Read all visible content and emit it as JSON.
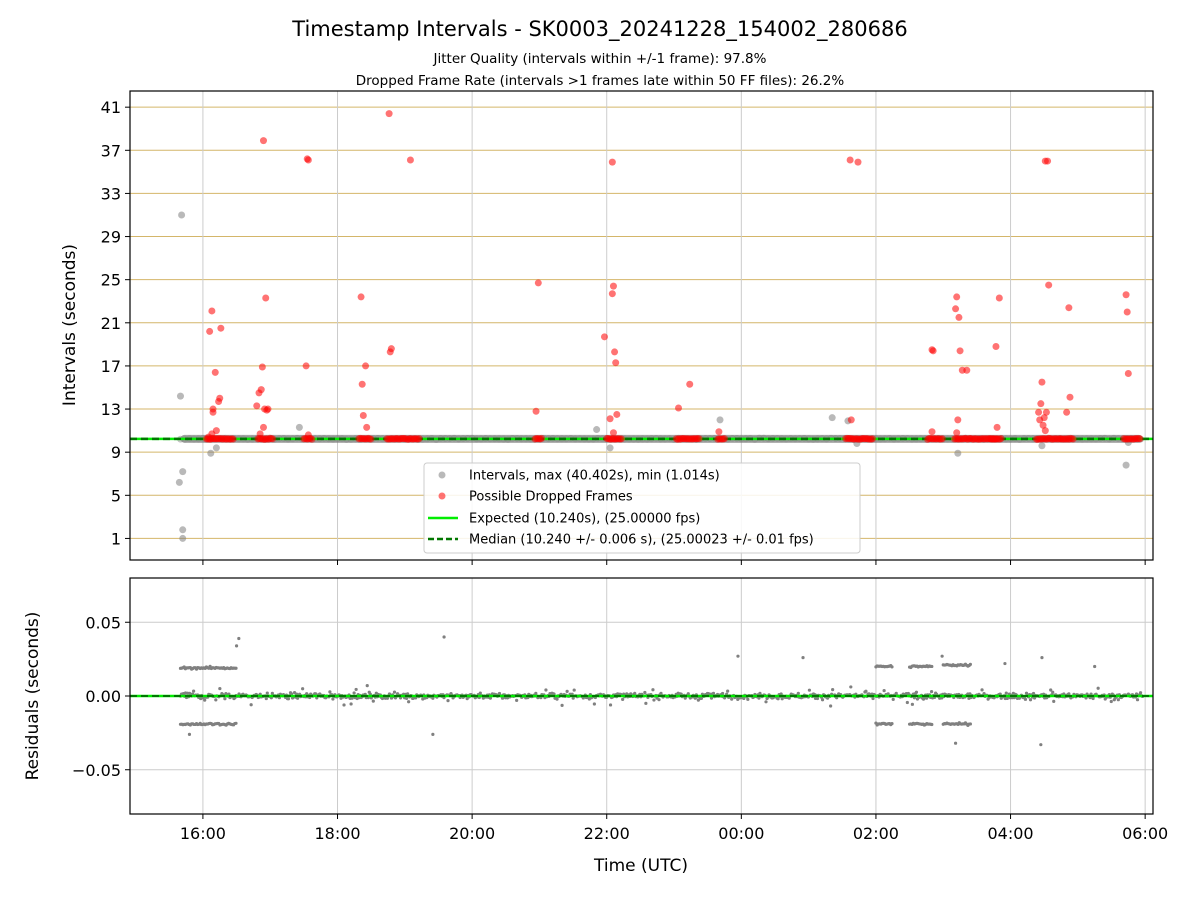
{
  "title": "Timestamp Intervals - SK0003_20241228_154002_280686",
  "subtitle_lines": [
    "Jitter Quality (intervals within +/-1 frame): 97.8%",
    "Dropped Frame Rate (intervals >1 frames late within 50 FF files): 26.2%"
  ],
  "colors": {
    "intervals": "#808080",
    "dropped": "#ff0000",
    "expected": "#00ee00",
    "median": "#007700",
    "hgrid_top": "#d4b66a",
    "grid": "#cccccc"
  },
  "chart_data": [
    {
      "type": "scatter",
      "ylabel": "Intervals (seconds)",
      "yticks": [
        1,
        5,
        9,
        13,
        17,
        21,
        25,
        29,
        33,
        37,
        41
      ],
      "ylim": [
        -1,
        42.5
      ],
      "grid": true,
      "legend_position": "lower center",
      "legend": [
        "Intervals, max (40.402s), min (1.014s)",
        "Possible Dropped Frames",
        "Expected (10.240s), (25.00000 fps)",
        "Median (10.240 +/- 0.006 s), (25.00023 +/- 0.01 fps)"
      ],
      "expected_value": 10.24,
      "median_value": 10.24,
      "interval_outliers": [
        [
          "15:41",
          31.0
        ],
        [
          "15:40",
          14.2
        ],
        [
          "15:42",
          7.2
        ],
        [
          "15:39",
          6.2
        ],
        [
          "15:42",
          1.8
        ],
        [
          "15:42",
          1.0
        ],
        [
          "16:07",
          8.9
        ],
        [
          "16:12",
          9.4
        ],
        [
          "17:26",
          11.3
        ],
        [
          "21:51",
          11.1
        ],
        [
          "22:03",
          9.4
        ],
        [
          "23:41",
          12.0
        ],
        [
          "01:21",
          12.2
        ],
        [
          "01:35",
          11.9
        ],
        [
          "01:43",
          9.8
        ],
        [
          "03:13",
          8.9
        ],
        [
          "04:28",
          9.6
        ],
        [
          "05:43",
          7.8
        ],
        [
          "05:45",
          9.9
        ]
      ],
      "dropped_frames": [
        [
          "16:06",
          20.2
        ],
        [
          "16:08",
          22.1
        ],
        [
          "16:09",
          13.0
        ],
        [
          "16:09",
          12.7
        ],
        [
          "16:11",
          16.4
        ],
        [
          "16:14",
          13.7
        ],
        [
          "16:15",
          14.0
        ],
        [
          "16:16",
          20.5
        ],
        [
          "16:05",
          10.4
        ],
        [
          "16:08",
          10.7
        ],
        [
          "16:12",
          11.0
        ],
        [
          "16:48",
          13.3
        ],
        [
          "16:50",
          14.5
        ],
        [
          "16:52",
          14.8
        ],
        [
          "16:53",
          16.9
        ],
        [
          "16:54",
          11.3
        ],
        [
          "16:55",
          13.0
        ],
        [
          "16:56",
          23.3
        ],
        [
          "16:57",
          12.9
        ],
        [
          "16:58",
          13.0
        ],
        [
          "16:54",
          37.9
        ],
        [
          "16:51",
          10.7
        ],
        [
          "17:33",
          36.2
        ],
        [
          "17:34",
          36.1
        ],
        [
          "17:32",
          17.0
        ],
        [
          "17:34",
          10.6
        ],
        [
          "18:21",
          23.4
        ],
        [
          "18:22",
          15.3
        ],
        [
          "18:23",
          12.4
        ],
        [
          "18:25",
          17.0
        ],
        [
          "18:26",
          11.3
        ],
        [
          "18:46",
          40.4
        ],
        [
          "18:47",
          18.3
        ],
        [
          "18:48",
          18.6
        ],
        [
          "19:05",
          36.1
        ],
        [
          "20:59",
          24.7
        ],
        [
          "20:57",
          12.8
        ],
        [
          "21:58",
          19.7
        ],
        [
          "22:03",
          12.1
        ],
        [
          "22:05",
          23.7
        ],
        [
          "22:06",
          24.4
        ],
        [
          "22:06",
          10.8
        ],
        [
          "22:07",
          18.3
        ],
        [
          "22:08",
          17.3
        ],
        [
          "22:09",
          12.5
        ],
        [
          "22:05",
          35.9
        ],
        [
          "23:04",
          13.1
        ],
        [
          "23:14",
          15.3
        ],
        [
          "23:40",
          10.9
        ],
        [
          "01:37",
          36.1
        ],
        [
          "01:38",
          12.0
        ],
        [
          "01:44",
          35.9
        ],
        [
          "02:50",
          18.5
        ],
        [
          "02:51",
          18.4
        ],
        [
          "02:50",
          10.9
        ],
        [
          "03:11",
          22.3
        ],
        [
          "03:12",
          23.4
        ],
        [
          "03:13",
          12.0
        ],
        [
          "03:14",
          21.5
        ],
        [
          "03:15",
          18.4
        ],
        [
          "03:17",
          16.6
        ],
        [
          "03:21",
          16.6
        ],
        [
          "03:12",
          10.8
        ],
        [
          "03:47",
          18.8
        ],
        [
          "03:48",
          11.3
        ],
        [
          "03:50",
          23.3
        ],
        [
          "04:25",
          12.7
        ],
        [
          "04:26",
          12.0
        ],
        [
          "04:27",
          13.5
        ],
        [
          "04:28",
          15.5
        ],
        [
          "04:29",
          11.5
        ],
        [
          "04:30",
          12.2
        ],
        [
          "04:31",
          11.0
        ],
        [
          "04:32",
          12.7
        ],
        [
          "04:31",
          36.0
        ],
        [
          "04:33",
          36.0
        ],
        [
          "04:34",
          24.5
        ],
        [
          "04:50",
          12.7
        ],
        [
          "04:52",
          22.4
        ],
        [
          "04:53",
          14.1
        ],
        [
          "05:43",
          23.6
        ],
        [
          "05:44",
          22.0
        ],
        [
          "05:45",
          16.3
        ]
      ],
      "dropped_clusters_at_baseline": [
        [
          "16:03",
          "16:27"
        ],
        [
          "16:49",
          "17:03"
        ],
        [
          "17:30",
          "17:38"
        ],
        [
          "18:19",
          "18:30"
        ],
        [
          "18:44",
          "19:13"
        ],
        [
          "20:56",
          "21:03"
        ],
        [
          "22:00",
          "22:14"
        ],
        [
          "23:02",
          "23:23"
        ],
        [
          "23:39",
          "23:46"
        ],
        [
          "01:33",
          "01:58"
        ],
        [
          "02:46",
          "03:00"
        ],
        [
          "03:10",
          "03:48"
        ],
        [
          "03:42",
          "03:52"
        ],
        [
          "04:23",
          "04:45"
        ],
        [
          "04:45",
          "04:56"
        ],
        [
          "05:41",
          "05:56"
        ]
      ]
    },
    {
      "type": "scatter",
      "xlabel": "Time (UTC)",
      "ylabel": "Residuals (seconds)",
      "xticks": [
        "16:00",
        "18:00",
        "20:00",
        "22:00",
        "00:00",
        "02:00",
        "04:00",
        "06:00"
      ],
      "yticks": [
        "0.05",
        "0.00",
        "−0.05"
      ],
      "ylim": [
        -0.08,
        0.08
      ],
      "grid": true,
      "residual_zero_line": 0,
      "residual_band_high": [
        [
          "15:40",
          "16:30",
          0.019
        ],
        [
          "02:00",
          "02:15",
          0.02
        ],
        [
          "02:30",
          "02:50",
          0.02
        ],
        [
          "03:00",
          "03:25",
          0.021
        ]
      ],
      "residual_band_low": [
        [
          "15:40",
          "16:30",
          -0.019
        ],
        [
          "02:00",
          "02:15",
          -0.019
        ],
        [
          "02:30",
          "02:50",
          -0.019
        ],
        [
          "03:00",
          "03:25",
          -0.019
        ]
      ],
      "residual_scatter_width": 0.004,
      "residual_extremes": [
        [
          "16:32",
          0.039
        ],
        [
          "19:35",
          0.04
        ],
        [
          "16:30",
          0.034
        ],
        [
          "23:57",
          0.027
        ],
        [
          "00:55",
          0.026
        ],
        [
          "04:27",
          -0.033
        ],
        [
          "03:11",
          -0.032
        ],
        [
          "15:48",
          -0.026
        ],
        [
          "19:25",
          -0.026
        ],
        [
          "02:59",
          0.027
        ],
        [
          "03:55",
          0.022
        ],
        [
          "04:28",
          0.026
        ],
        [
          "05:15",
          0.02
        ]
      ]
    }
  ]
}
